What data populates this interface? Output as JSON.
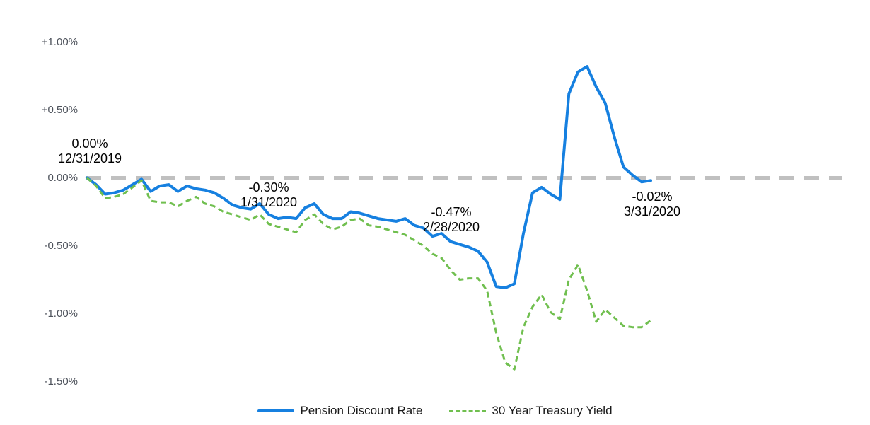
{
  "chart_data": {
    "type": "line",
    "title": "",
    "x_axis": {
      "labels_visible": false,
      "start": "12/31/2019",
      "end": "3/31/2020"
    },
    "y_axis": {
      "unit": "%",
      "min": -1.5,
      "max": 1.0,
      "ticks": [
        {
          "label": "+1.00%",
          "value": 1.0
        },
        {
          "label": "+0.50%",
          "value": 0.5
        },
        {
          "label": "0.00%",
          "value": 0.0
        },
        {
          "label": "-0.50%",
          "value": -0.5
        },
        {
          "label": "-1.00%",
          "value": -1.0
        },
        {
          "label": "-1.50%",
          "value": -1.5
        }
      ]
    },
    "zero_line": {
      "color": "#C0C0C0",
      "style": "dashed"
    },
    "series": [
      {
        "name": "Pension Discount Rate",
        "color": "#1680E0",
        "style": "solid",
        "values": [
          0.0,
          -0.05,
          -0.12,
          -0.11,
          -0.09,
          -0.05,
          -0.01,
          -0.1,
          -0.06,
          -0.05,
          -0.1,
          -0.06,
          -0.08,
          -0.09,
          -0.11,
          -0.15,
          -0.2,
          -0.22,
          -0.23,
          -0.19,
          -0.27,
          -0.3,
          -0.29,
          -0.3,
          -0.22,
          -0.19,
          -0.27,
          -0.3,
          -0.3,
          -0.25,
          -0.26,
          -0.28,
          -0.3,
          -0.31,
          -0.32,
          -0.3,
          -0.35,
          -0.37,
          -0.43,
          -0.41,
          -0.47,
          -0.49,
          -0.51,
          -0.54,
          -0.62,
          -0.8,
          -0.81,
          -0.78,
          -0.41,
          -0.11,
          -0.07,
          -0.12,
          -0.16,
          0.62,
          0.78,
          0.82,
          0.67,
          0.55,
          0.3,
          0.08,
          0.02,
          -0.03,
          -0.02
        ]
      },
      {
        "name": "30 Year Treasury Yield",
        "color": "#70BF4F",
        "style": "dashed",
        "values": [
          0.0,
          -0.06,
          -0.15,
          -0.14,
          -0.12,
          -0.07,
          -0.02,
          -0.17,
          -0.18,
          -0.18,
          -0.21,
          -0.17,
          -0.14,
          -0.19,
          -0.21,
          -0.25,
          -0.27,
          -0.29,
          -0.31,
          -0.27,
          -0.34,
          -0.36,
          -0.38,
          -0.4,
          -0.31,
          -0.27,
          -0.34,
          -0.38,
          -0.36,
          -0.31,
          -0.3,
          -0.35,
          -0.36,
          -0.38,
          -0.4,
          -0.42,
          -0.46,
          -0.5,
          -0.56,
          -0.59,
          -0.68,
          -0.75,
          -0.74,
          -0.74,
          -0.83,
          -1.14,
          -1.36,
          -1.41,
          -1.1,
          -0.95,
          -0.86,
          -0.99,
          -1.04,
          -0.75,
          -0.64,
          -0.83,
          -1.06,
          -0.97,
          -1.03,
          -1.09,
          -1.1,
          -1.1,
          -1.05
        ]
      }
    ],
    "annotations": [
      {
        "value_label": "0.00%",
        "date_label": "12/31/2019"
      },
      {
        "value_label": "-0.30%",
        "date_label": "1/31/2020"
      },
      {
        "value_label": "-0.47%",
        "date_label": "2/28/2020"
      },
      {
        "value_label": "-0.02%",
        "date_label": "3/31/2020"
      }
    ]
  },
  "legend": {
    "items": [
      {
        "label": "Pension Discount Rate",
        "color": "#1680E0",
        "style": "solid"
      },
      {
        "label": "30 Year Treasury Yield",
        "color": "#70BF4F",
        "style": "dashed"
      }
    ]
  }
}
